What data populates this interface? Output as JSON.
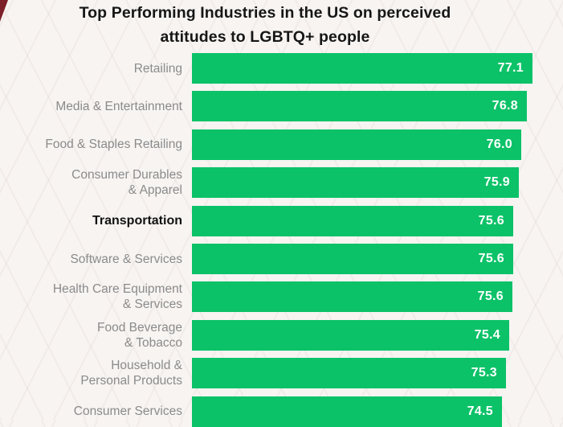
{
  "page": {
    "background_color": "#f7f4f2",
    "corner_triangle_color": "#7d1f28"
  },
  "chart_data": {
    "type": "bar",
    "orientation": "horizontal",
    "title": "Top Performing Industries in the US on perceived attitudes to LGBTQ+ people",
    "title_lines": [
      "Top Performing Industries in the US on perceived",
      "attitudes to LGBTQ+ people"
    ],
    "categories": [
      "Retailing",
      "Media & Entertainment",
      "Food & Staples Retailing",
      "Consumer Durables & Apparel",
      "Transportation",
      "Software & Services",
      "Health Care Equipment & Services",
      "Food Beverage & Tobacco",
      "Household & Personal Products",
      "Consumer Services"
    ],
    "category_lines": [
      [
        "Retailing"
      ],
      [
        "Media & Entertainment"
      ],
      [
        "Food & Staples Retailing"
      ],
      [
        "Consumer Durables",
        "& Apparel"
      ],
      [
        "Transportation"
      ],
      [
        "Software & Services"
      ],
      [
        "Health Care Equipment",
        "& Services"
      ],
      [
        "Food Beverage",
        "& Tobacco"
      ],
      [
        "Household &",
        "Personal Products"
      ],
      [
        "Consumer Services"
      ]
    ],
    "values": [
      77.1,
      76.8,
      76.0,
      75.9,
      75.6,
      75.6,
      75.6,
      75.4,
      75.3,
      74.5
    ],
    "value_labels": [
      "77.1",
      "76.8",
      "76.0",
      "75.9",
      "75.6",
      "75.6",
      "75.6",
      "75.4",
      "75.3",
      "74.5"
    ],
    "highlighted_category": "Transportation",
    "bar_color": "#0cc268",
    "value_text_color": "#ffffff",
    "label_color": "#8b8b8b",
    "highlight_label_color": "#121212",
    "xlabel": "",
    "ylabel": "",
    "grid": false,
    "legend": false,
    "value_labels_position": "inside-end"
  }
}
